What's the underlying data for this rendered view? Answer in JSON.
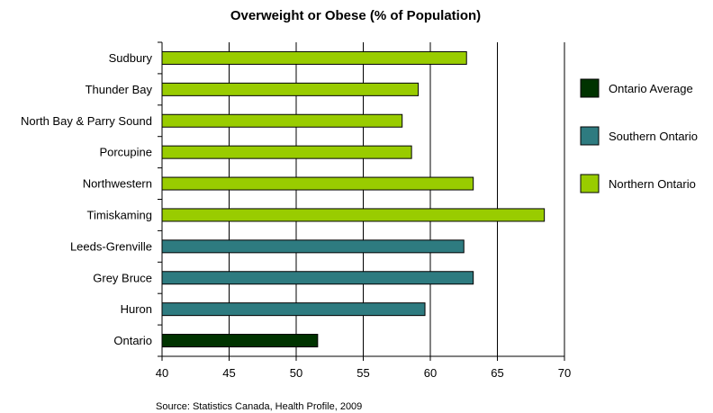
{
  "chart_data": {
    "type": "bar",
    "orientation": "horizontal",
    "title": "Overweight or Obese (% of Population)",
    "source": "Source: Statistics Canada, Health Profile, 2009",
    "categories": [
      "Sudbury",
      "Thunder Bay",
      "North Bay & Parry Sound",
      "Porcupine",
      "Northwestern",
      "Timiskaming",
      "Leeds-Grenville",
      "Grey Bruce",
      "Huron",
      "Ontario"
    ],
    "values": [
      62.7,
      59.1,
      57.9,
      58.6,
      63.2,
      68.5,
      62.5,
      63.2,
      59.6,
      51.6
    ],
    "groups": [
      "Northern Ontario",
      "Northern Ontario",
      "Northern Ontario",
      "Northern Ontario",
      "Northern Ontario",
      "Northern Ontario",
      "Southern Ontario",
      "Southern Ontario",
      "Southern Ontario",
      "Ontario Average"
    ],
    "xlim": [
      40,
      70
    ],
    "xticks": [
      40,
      45,
      50,
      55,
      60,
      65,
      70
    ],
    "grid": true,
    "legend_position": "right",
    "legend": [
      {
        "name": "Ontario Average",
        "color": "#003300"
      },
      {
        "name": "Southern Ontario",
        "color": "#2E7B80"
      },
      {
        "name": "Northern Ontario",
        "color": "#99CC00"
      }
    ]
  }
}
